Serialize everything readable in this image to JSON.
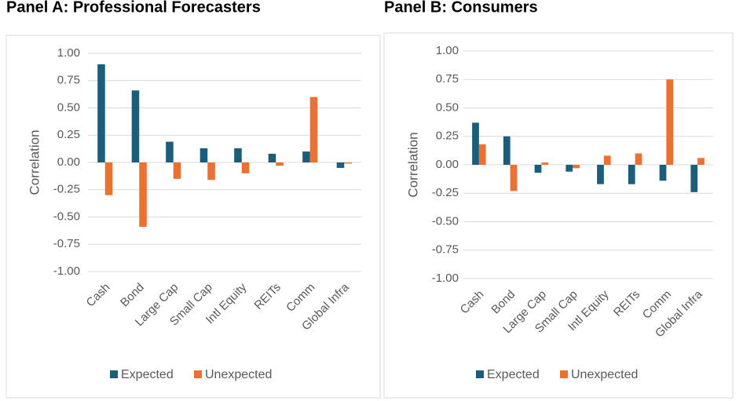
{
  "chart_data": [
    {
      "type": "bar",
      "title": "Panel A: Professional Forecasters",
      "y_label": "Correlation",
      "categories": [
        "Cash",
        "Bond",
        "Large Cap",
        "Small Cap",
        "Intl Equity",
        "REITs",
        "Comm",
        "Global Infra"
      ],
      "series": [
        {
          "name": "Expected",
          "color": "#1b5e7b",
          "values": [
            0.9,
            0.66,
            0.19,
            0.13,
            0.13,
            0.08,
            0.1,
            -0.05
          ]
        },
        {
          "name": "Unexpected",
          "color": "#e97132",
          "values": [
            -0.3,
            -0.59,
            -0.15,
            -0.16,
            -0.1,
            -0.03,
            0.6,
            -0.01
          ]
        }
      ],
      "ylim": [
        -1,
        1
      ],
      "yticks": [
        {
          "value": -1,
          "label": "-1.00"
        },
        {
          "value": -0.75,
          "label": "-0.75"
        },
        {
          "value": -0.5,
          "label": "-0.50"
        },
        {
          "value": -0.25,
          "label": "-0.25"
        },
        {
          "value": 0,
          "label": "0.00"
        },
        {
          "value": 0.25,
          "label": "0.25"
        },
        {
          "value": 0.5,
          "label": "0.50"
        },
        {
          "value": 0.75,
          "label": "0.75"
        },
        {
          "value": 1,
          "label": "1.00"
        }
      ],
      "grid": true,
      "legend": "bottom"
    },
    {
      "type": "bar",
      "title": "Panel B: Consumers",
      "y_label": "Correlation",
      "categories": [
        "Cash",
        "Bond",
        "Large Cap",
        "Small Cap",
        "Intl Equity",
        "REITs",
        "Comm",
        "Global Infra"
      ],
      "series": [
        {
          "name": "Expected",
          "color": "#1b5e7b",
          "values": [
            0.37,
            0.25,
            -0.07,
            -0.06,
            -0.17,
            -0.17,
            -0.14,
            -0.24
          ]
        },
        {
          "name": "Unexpected",
          "color": "#e97132",
          "values": [
            0.18,
            -0.23,
            0.02,
            -0.03,
            0.08,
            0.1,
            0.75,
            0.06
          ]
        }
      ],
      "ylim": [
        -1,
        1
      ],
      "yticks": [
        {
          "value": -1,
          "label": "-1.00"
        },
        {
          "value": -0.75,
          "label": "-0.75"
        },
        {
          "value": -0.5,
          "label": "-0.50"
        },
        {
          "value": -0.25,
          "label": "-0.25"
        },
        {
          "value": 0,
          "label": "0.00"
        },
        {
          "value": 0.25,
          "label": "0.25"
        },
        {
          "value": 0.5,
          "label": "0.50"
        },
        {
          "value": 0.75,
          "label": "0.75"
        },
        {
          "value": 1,
          "label": "1.00"
        }
      ],
      "grid": true,
      "legend": "bottom"
    }
  ]
}
